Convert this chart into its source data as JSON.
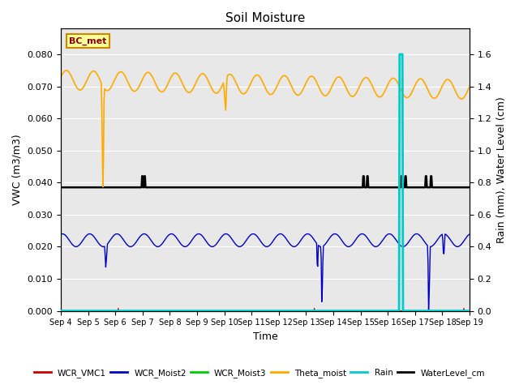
{
  "title": "Soil Moisture",
  "xlabel": "Time",
  "ylabel_left": "VWC (m3/m3)",
  "ylabel_right": "Rain (mm), Water Level (cm)",
  "ylim_left": [
    0.0,
    0.088
  ],
  "ylim_right": [
    0.0,
    1.76
  ],
  "bg_color": "#e8e8e8",
  "annotation_box": "BC_met",
  "legend_labels": [
    "WCR_VMC1",
    "WCR_Moist2",
    "WCR_Moist3",
    "Theta_moist",
    "Rain",
    "WaterLevel_cm"
  ],
  "legend_colors": [
    "#cc0000",
    "#0000cc",
    "#00cc00",
    "#ffaa00",
    "#00cccc",
    "#000000"
  ]
}
